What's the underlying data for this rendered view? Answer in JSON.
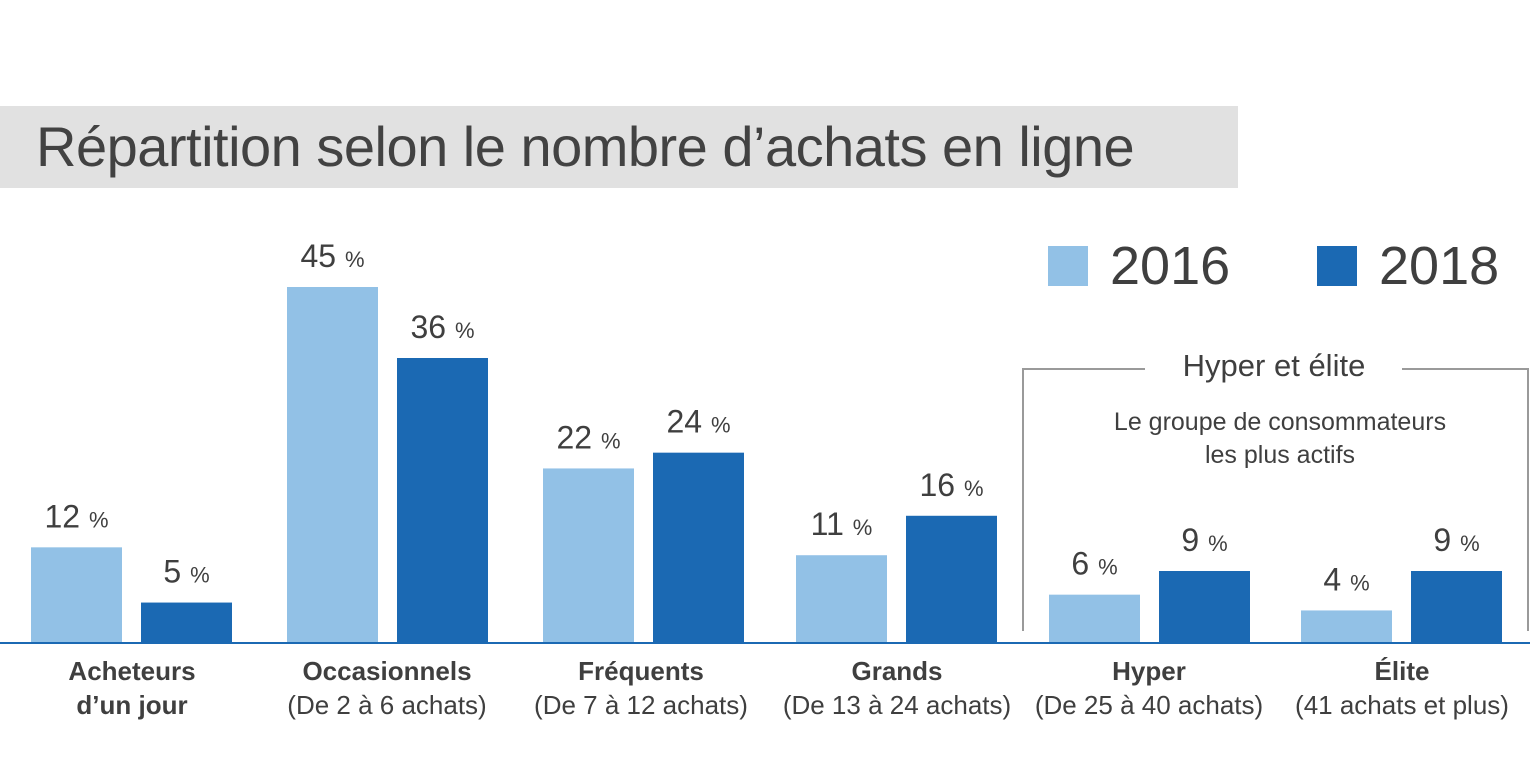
{
  "chart_data": {
    "type": "bar",
    "title": "Répartition selon le nombre d’achats en ligne",
    "categories": [
      {
        "name": "Acheteurs",
        "sub": "d’un jour",
        "sub_bold": true
      },
      {
        "name": "Occasionnels",
        "sub": "(De 2 à 6 achats)",
        "sub_bold": false
      },
      {
        "name": "Fréquents",
        "sub": "(De 7 à 12 achats)",
        "sub_bold": false
      },
      {
        "name": "Grands",
        "sub": "(De 13 à 24 achats)",
        "sub_bold": false
      },
      {
        "name": "Hyper",
        "sub": "(De 25 à 40 achats)",
        "sub_bold": false
      },
      {
        "name": "Élite",
        "sub": "(41 achats et plus)",
        "sub_bold": false
      }
    ],
    "series": [
      {
        "name": "2016",
        "color": "#92c1e6",
        "values": [
          12,
          45,
          22,
          11,
          6,
          4
        ]
      },
      {
        "name": "2018",
        "color": "#1b69b3",
        "values": [
          5,
          36,
          24,
          16,
          9,
          9
        ]
      }
    ],
    "value_suffix": "%",
    "ylim": [
      0,
      45
    ],
    "legend_position": "top-right",
    "grid": false,
    "annotation": {
      "title": "Hyper et élite",
      "subtitle_lines": [
        "Le groupe de consommateurs",
        "les plus actifs"
      ],
      "spans_categories": [
        "Hyper",
        "Élite"
      ]
    }
  }
}
